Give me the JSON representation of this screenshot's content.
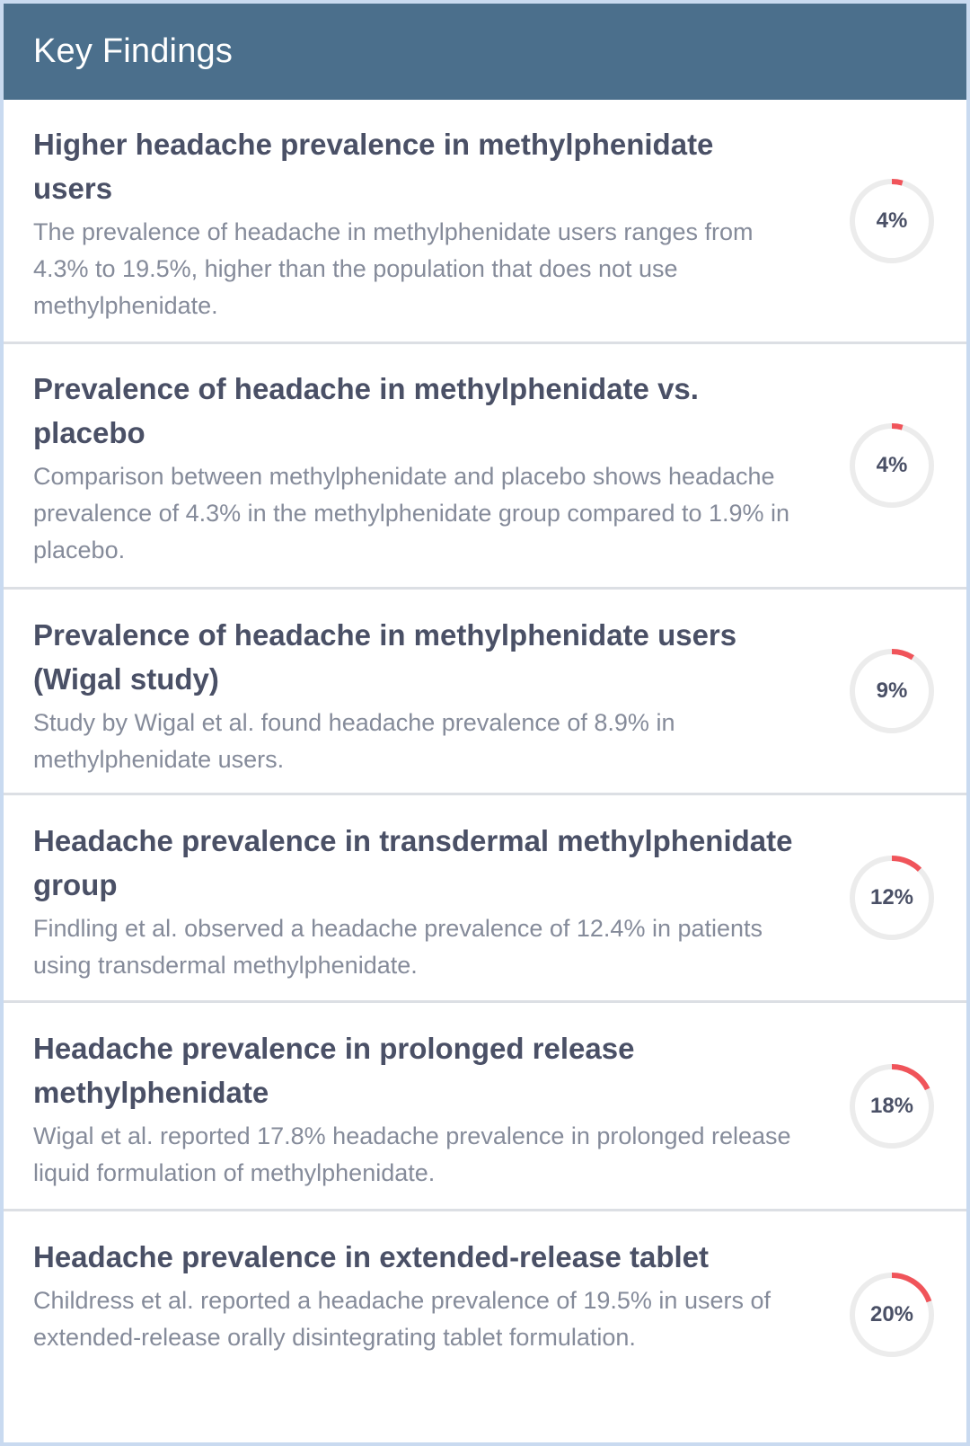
{
  "header": {
    "title": "Key Findings"
  },
  "colors": {
    "header_bg": "#4b6f8c",
    "gauge_track": "#ececec",
    "gauge_fill": "#f0545a"
  },
  "findings": [
    {
      "title": "Higher headache prevalence in methylphenidate users",
      "description": "The prevalence of headache in methylphenidate users ranges from 4.3% to 19.5%, higher than the population that does not use methylphenidate.",
      "percent_label": "4%",
      "value": 4.3
    },
    {
      "title": "Prevalence of headache in methylphenidate vs. placebo",
      "description": "Comparison between methylphenidate and placebo shows headache prevalence of 4.3% in the methylphenidate group compared to 1.9% in placebo.",
      "percent_label": "4%",
      "value": 4.3
    },
    {
      "title": "Prevalence of headache in methylphenidate users (Wigal study)",
      "description": "Study by Wigal et al. found headache prevalence of 8.9% in methylphenidate users.",
      "percent_label": "9%",
      "value": 8.9
    },
    {
      "title": "Headache prevalence in transdermal methylphenidate group",
      "description": "Findling et al. observed a headache prevalence of 12.4% in patients using transdermal methylphenidate.",
      "percent_label": "12%",
      "value": 12.4
    },
    {
      "title": "Headache prevalence in prolonged release methylphenidate",
      "description": "Wigal et al. reported 17.8% headache prevalence in prolonged release liquid formulation of methylphenidate.",
      "percent_label": "18%",
      "value": 17.8
    },
    {
      "title": "Headache prevalence in extended-release tablet",
      "description": "Childress et al. reported a headache prevalence of 19.5% in users of extended-release orally disintegrating tablet formulation.",
      "percent_label": "20%",
      "value": 19.5
    }
  ]
}
